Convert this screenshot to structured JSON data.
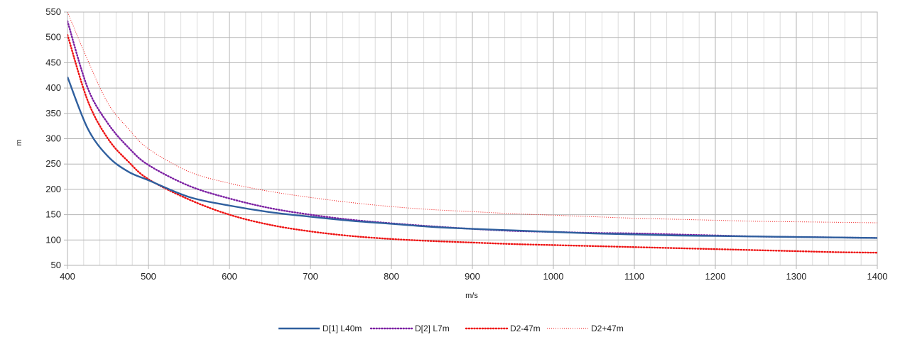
{
  "chart_data": {
    "type": "line",
    "title": "",
    "xlabel": "m/s",
    "ylabel": "m",
    "xlim": [
      400,
      1400
    ],
    "ylim": [
      50,
      550
    ],
    "x_ticks": [
      "400",
      "500",
      "600",
      "700",
      "800",
      "900",
      "1000",
      "1100",
      "1200",
      "1300",
      "1400"
    ],
    "y_ticks": [
      "50",
      "100",
      "150",
      "200",
      "250",
      "300",
      "350",
      "400",
      "450",
      "500",
      "550"
    ],
    "x_minor_step": 20,
    "grid": true,
    "legend_position": "bottom",
    "x": [
      400,
      425,
      450,
      475,
      500,
      550,
      600,
      650,
      700,
      750,
      800,
      850,
      900,
      950,
      1000,
      1050,
      1100,
      1150,
      1200,
      1250,
      1300,
      1350,
      1400
    ],
    "series": [
      {
        "name": "D[1] L40m",
        "color": "#2f5f9e",
        "style": "solid",
        "values": [
          422,
          320,
          265,
          235,
          218,
          185,
          168,
          155,
          146,
          138,
          132,
          126,
          122,
          119,
          116,
          113,
          111,
          109,
          108,
          107,
          106,
          105,
          104
        ]
      },
      {
        "name": "D[2] L7m",
        "color": "#7b1fa2",
        "style": "dotted",
        "values": [
          532,
          400,
          330,
          283,
          248,
          207,
          182,
          163,
          150,
          140,
          133,
          127,
          122,
          118,
          116,
          114,
          113,
          111,
          109,
          107,
          106,
          105,
          104
        ]
      },
      {
        "name": "D2-47m",
        "color": "#ee1111",
        "style": "dotted",
        "values": [
          505,
          375,
          300,
          255,
          220,
          180,
          150,
          130,
          117,
          108,
          102,
          98,
          95,
          92,
          90,
          88,
          86,
          84,
          82,
          80,
          78,
          76,
          75
        ]
      },
      {
        "name": "D2+47m",
        "color": "#ee1111",
        "style": "thin",
        "values": [
          550,
          455,
          370,
          320,
          280,
          235,
          212,
          196,
          184,
          174,
          166,
          160,
          156,
          152,
          149,
          146,
          143,
          141,
          139,
          137,
          136,
          135,
          134
        ]
      }
    ]
  }
}
